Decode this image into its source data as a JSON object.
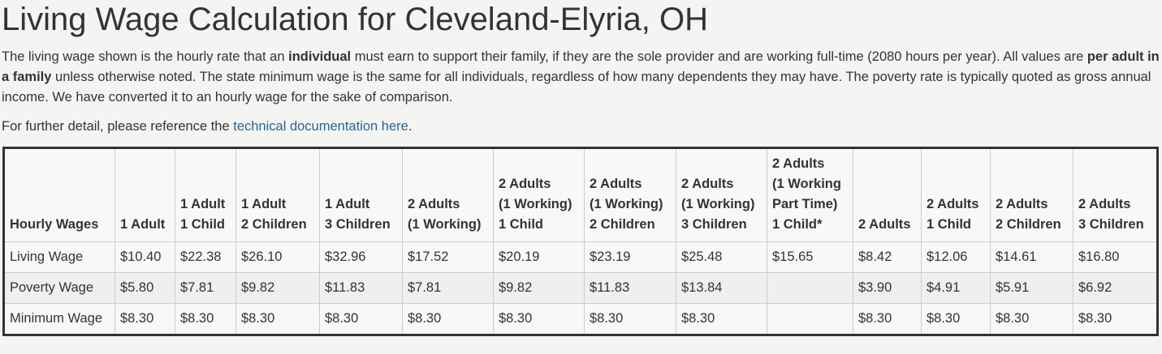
{
  "header": {
    "title": "Living Wage Calculation for Cleveland-Elyria, OH"
  },
  "intro": {
    "segments": [
      "The living wage shown is the hourly rate that an ",
      "individual",
      " must earn to support their family, if they are the sole provider and are working full-time (2080 hours per year). All values are ",
      "per adult in a family",
      " unless otherwise noted. The state minimum wage is the same for all individuals, regardless of how many dependents they may have. The poverty rate is typically quoted as gross annual income. We have converted it to an hourly wage for the sake of comparison."
    ]
  },
  "detail": {
    "before": "For further detail, please reference the ",
    "link": "technical documentation here",
    "after": "."
  },
  "table": {
    "columns": [
      [
        "Hourly Wages"
      ],
      [
        "1 Adult"
      ],
      [
        "1 Adult",
        "1 Child"
      ],
      [
        "1 Adult",
        "2 Children"
      ],
      [
        "1 Adult",
        "3 Children"
      ],
      [
        "2 Adults",
        "(1 Working)"
      ],
      [
        "2 Adults",
        "(1 Working)",
        "1 Child"
      ],
      [
        "2 Adults",
        "(1 Working)",
        "2 Children"
      ],
      [
        "2 Adults",
        "(1 Working)",
        "3 Children"
      ],
      [
        "2 Adults",
        "(1 Working",
        "Part Time)",
        "1 Child*"
      ],
      [
        "2 Adults"
      ],
      [
        "2 Adults",
        "1 Child"
      ],
      [
        "2 Adults",
        "2 Children"
      ],
      [
        "2 Adults",
        "3 Children"
      ]
    ],
    "rows": [
      [
        "Living Wage",
        "$10.40",
        "$22.38",
        "$26.10",
        "$32.96",
        "$17.52",
        "$20.19",
        "$23.19",
        "$25.48",
        "$15.65",
        "$8.42",
        "$12.06",
        "$14.61",
        "$16.80"
      ],
      [
        "Poverty Wage",
        "$5.80",
        "$7.81",
        "$9.82",
        "$11.83",
        "$7.81",
        "$9.82",
        "$11.83",
        "$13.84",
        null,
        "$3.90",
        "$4.91",
        "$5.91",
        "$6.92"
      ],
      [
        "Minimum Wage",
        "$8.30",
        "$8.30",
        "$8.30",
        "$8.30",
        "$8.30",
        "$8.30",
        "$8.30",
        "$8.30",
        null,
        "$8.30",
        "$8.30",
        "$8.30",
        "$8.30"
      ]
    ]
  }
}
